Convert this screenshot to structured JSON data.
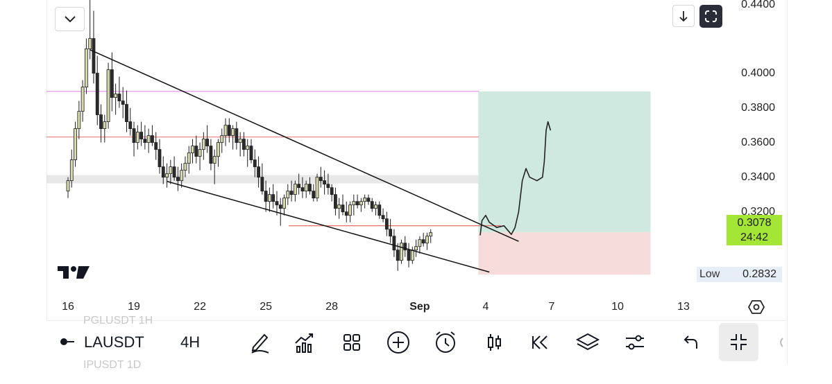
{
  "chart_data": {
    "type": "candlestick",
    "symbol": "LAUSDT",
    "interval": "4H",
    "last_price": "0.3078",
    "countdown": "24:42",
    "low_label": "Low",
    "low_value": "0.2832",
    "y_ticks": [
      "0.4400",
      "0.4000",
      "0.3800",
      "0.3600",
      "0.3400",
      "0.3200"
    ],
    "y_tick_values": [
      0.44,
      0.4,
      0.38,
      0.36,
      0.34,
      0.32
    ],
    "ylim": [
      0.2743,
      0.4422
    ],
    "x_ticks": [
      {
        "label": "16",
        "bold": false
      },
      {
        "label": "19",
        "bold": false
      },
      {
        "label": "22",
        "bold": false
      },
      {
        "label": "25",
        "bold": false
      },
      {
        "label": "28",
        "bold": false
      },
      {
        "label": "Sep",
        "bold": true
      },
      {
        "label": "4",
        "bold": false
      },
      {
        "label": "7",
        "bold": false
      },
      {
        "label": "10",
        "bold": false
      },
      {
        "label": "13",
        "bold": false
      }
    ],
    "x_tick_index": [
      0,
      18,
      36,
      54,
      72,
      96,
      114,
      132,
      150,
      168
    ],
    "candles": [
      [
        0.332,
        0.34,
        0.328,
        0.338
      ],
      [
        0.338,
        0.356,
        0.334,
        0.35
      ],
      [
        0.35,
        0.372,
        0.346,
        0.368
      ],
      [
        0.368,
        0.384,
        0.362,
        0.378
      ],
      [
        0.378,
        0.396,
        0.372,
        0.392
      ],
      [
        0.392,
        0.42,
        0.388,
        0.414
      ],
      [
        0.414,
        0.446,
        0.408,
        0.42
      ],
      [
        0.42,
        0.436,
        0.394,
        0.4
      ],
      [
        0.4,
        0.41,
        0.37,
        0.376
      ],
      [
        0.376,
        0.382,
        0.36,
        0.368
      ],
      [
        0.368,
        0.376,
        0.36,
        0.372
      ],
      [
        0.372,
        0.406,
        0.368,
        0.402
      ],
      [
        0.402,
        0.412,
        0.378,
        0.386
      ],
      [
        0.386,
        0.394,
        0.376,
        0.388
      ],
      [
        0.388,
        0.398,
        0.38,
        0.384
      ],
      [
        0.384,
        0.392,
        0.374,
        0.382
      ],
      [
        0.382,
        0.39,
        0.366,
        0.372
      ],
      [
        0.372,
        0.38,
        0.364,
        0.368
      ],
      [
        0.368,
        0.372,
        0.352,
        0.36
      ],
      [
        0.36,
        0.37,
        0.356,
        0.366
      ],
      [
        0.366,
        0.372,
        0.358,
        0.362
      ],
      [
        0.362,
        0.37,
        0.356,
        0.36
      ],
      [
        0.36,
        0.368,
        0.354,
        0.364
      ],
      [
        0.364,
        0.37,
        0.358,
        0.36
      ],
      [
        0.36,
        0.366,
        0.35,
        0.356
      ],
      [
        0.356,
        0.362,
        0.342,
        0.346
      ],
      [
        0.346,
        0.352,
        0.336,
        0.34
      ],
      [
        0.34,
        0.348,
        0.334,
        0.342
      ],
      [
        0.342,
        0.35,
        0.336,
        0.346
      ],
      [
        0.346,
        0.352,
        0.338,
        0.34
      ],
      [
        0.34,
        0.346,
        0.332,
        0.338
      ],
      [
        0.338,
        0.348,
        0.334,
        0.344
      ],
      [
        0.344,
        0.352,
        0.34,
        0.348
      ],
      [
        0.348,
        0.358,
        0.342,
        0.354
      ],
      [
        0.354,
        0.362,
        0.348,
        0.358
      ],
      [
        0.358,
        0.364,
        0.348,
        0.352
      ],
      [
        0.352,
        0.36,
        0.344,
        0.356
      ],
      [
        0.356,
        0.366,
        0.35,
        0.362
      ],
      [
        0.362,
        0.37,
        0.354,
        0.358
      ],
      [
        0.358,
        0.362,
        0.344,
        0.348
      ],
      [
        0.348,
        0.356,
        0.336,
        0.352
      ],
      [
        0.352,
        0.362,
        0.346,
        0.36
      ],
      [
        0.36,
        0.368,
        0.354,
        0.364
      ],
      [
        0.364,
        0.374,
        0.358,
        0.37
      ],
      [
        0.37,
        0.374,
        0.36,
        0.364
      ],
      [
        0.364,
        0.37,
        0.356,
        0.368
      ],
      [
        0.368,
        0.372,
        0.356,
        0.36
      ],
      [
        0.36,
        0.366,
        0.352,
        0.362
      ],
      [
        0.362,
        0.366,
        0.352,
        0.356
      ],
      [
        0.356,
        0.362,
        0.346,
        0.358
      ],
      [
        0.358,
        0.362,
        0.348,
        0.35
      ],
      [
        0.35,
        0.356,
        0.34,
        0.346
      ],
      [
        0.346,
        0.352,
        0.334,
        0.34
      ],
      [
        0.34,
        0.348,
        0.33,
        0.332
      ],
      [
        0.332,
        0.338,
        0.32,
        0.326
      ],
      [
        0.326,
        0.334,
        0.32,
        0.33
      ],
      [
        0.33,
        0.336,
        0.322,
        0.326
      ],
      [
        0.326,
        0.332,
        0.318,
        0.324
      ],
      [
        0.324,
        0.328,
        0.312,
        0.322
      ],
      [
        0.322,
        0.33,
        0.318,
        0.328
      ],
      [
        0.328,
        0.336,
        0.324,
        0.332
      ],
      [
        0.332,
        0.338,
        0.326,
        0.33
      ],
      [
        0.33,
        0.338,
        0.326,
        0.336
      ],
      [
        0.336,
        0.342,
        0.33,
        0.334
      ],
      [
        0.334,
        0.34,
        0.328,
        0.332
      ],
      [
        0.332,
        0.338,
        0.328,
        0.336
      ],
      [
        0.336,
        0.34,
        0.33,
        0.332
      ],
      [
        0.332,
        0.336,
        0.326,
        0.328
      ],
      [
        0.328,
        0.342,
        0.326,
        0.34
      ],
      [
        0.34,
        0.346,
        0.334,
        0.338
      ],
      [
        0.338,
        0.344,
        0.33,
        0.336
      ],
      [
        0.336,
        0.342,
        0.33,
        0.334
      ],
      [
        0.334,
        0.336,
        0.326,
        0.33
      ],
      [
        0.33,
        0.334,
        0.318,
        0.322
      ],
      [
        0.322,
        0.328,
        0.316,
        0.324
      ],
      [
        0.324,
        0.33,
        0.318,
        0.32
      ],
      [
        0.32,
        0.326,
        0.314,
        0.318
      ],
      [
        0.318,
        0.326,
        0.314,
        0.324
      ],
      [
        0.324,
        0.33,
        0.318,
        0.326
      ],
      [
        0.326,
        0.33,
        0.322,
        0.324
      ],
      [
        0.324,
        0.328,
        0.32,
        0.326
      ],
      [
        0.326,
        0.33,
        0.322,
        0.328
      ],
      [
        0.328,
        0.33,
        0.324,
        0.326
      ],
      [
        0.326,
        0.328,
        0.32,
        0.322
      ],
      [
        0.322,
        0.326,
        0.318,
        0.324
      ],
      [
        0.324,
        0.326,
        0.316,
        0.318
      ],
      [
        0.318,
        0.322,
        0.314,
        0.316
      ],
      [
        0.316,
        0.32,
        0.306,
        0.31
      ],
      [
        0.31,
        0.316,
        0.302,
        0.306
      ],
      [
        0.306,
        0.31,
        0.294,
        0.298
      ],
      [
        0.298,
        0.302,
        0.286,
        0.292
      ],
      [
        0.292,
        0.304,
        0.29,
        0.302
      ],
      [
        0.302,
        0.306,
        0.294,
        0.298
      ],
      [
        0.298,
        0.302,
        0.288,
        0.292
      ],
      [
        0.292,
        0.3,
        0.29,
        0.298
      ],
      [
        0.298,
        0.304,
        0.294,
        0.3
      ],
      [
        0.3,
        0.306,
        0.296,
        0.304
      ],
      [
        0.304,
        0.308,
        0.3,
        0.302
      ],
      [
        0.302,
        0.308,
        0.298,
        0.306
      ],
      [
        0.306,
        0.31,
        0.302,
        0.308
      ]
    ],
    "horizontal_lines": [
      {
        "price": 0.3895,
        "color": "#e08ee8"
      },
      {
        "price": 0.3632,
        "color": "#f08a8a"
      },
      {
        "price": 0.312,
        "color": "#e85b5b"
      }
    ],
    "zone": {
      "from": 0.3412,
      "to": 0.3364,
      "color": "#d6d6d6"
    },
    "trendlines": [
      {
        "i1": 6,
        "p1": 0.4135,
        "i2": 123,
        "p2": 0.303
      },
      {
        "i1": 27,
        "p1": 0.3376,
        "i2": 115,
        "p2": 0.2853
      }
    ],
    "position": {
      "entry": 0.3083,
      "target": 0.3895,
      "stop": 0.2838,
      "from_index": 112,
      "to_index": 159,
      "profit_color": "#cfe9e1",
      "loss_color": "#f7dcdc"
    },
    "projection_path": [
      [
        112.5,
        0.3065
      ],
      [
        113,
        0.315
      ],
      [
        114,
        0.318
      ],
      [
        115,
        0.314
      ],
      [
        117,
        0.311
      ],
      [
        119,
        0.312
      ],
      [
        121,
        0.307
      ],
      [
        122,
        0.311
      ],
      [
        123,
        0.32
      ],
      [
        124,
        0.338
      ],
      [
        125,
        0.345
      ],
      [
        126,
        0.34
      ],
      [
        128,
        0.338
      ],
      [
        129.5,
        0.34
      ],
      [
        130,
        0.349
      ],
      [
        130.5,
        0.367
      ],
      [
        131,
        0.372
      ],
      [
        131.7,
        0.367
      ]
    ]
  },
  "toolbar": {
    "ghost_top": "PGLUSDT    1H",
    "ghost_bottom": "IPUSDT    1D"
  },
  "icons": [
    "chevron-down-icon",
    "download-icon",
    "fullscreen-icon",
    "settings-icon",
    "pencil-icon",
    "indicators-icon",
    "grid-icon",
    "plus-circle-icon",
    "alarm-icon",
    "candles-icon",
    "rewind-icon",
    "layers-icon",
    "sliders-icon",
    "undo-icon",
    "exit-fullscreen-icon",
    "tradingview-logo-icon"
  ]
}
